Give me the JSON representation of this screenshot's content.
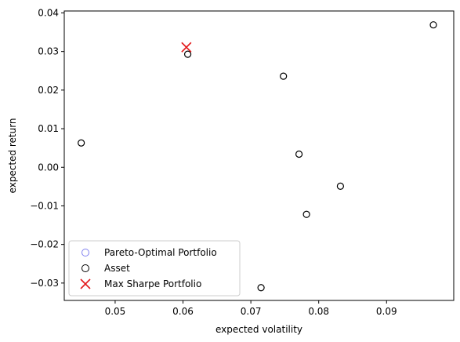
{
  "chart_data": {
    "type": "scatter",
    "xlabel": "expected volatility",
    "ylabel": "expected return",
    "xlim": [
      0.0425,
      0.0999
    ],
    "ylim": [
      -0.0345,
      0.0405
    ],
    "xticks": [
      {
        "value": 0.05,
        "label": "0.05"
      },
      {
        "value": 0.06,
        "label": "0.06"
      },
      {
        "value": 0.07,
        "label": "0.07"
      },
      {
        "value": 0.08,
        "label": "0.08"
      },
      {
        "value": 0.09,
        "label": "0.09"
      }
    ],
    "yticks": [
      {
        "value": 0.04,
        "label": "0.04"
      },
      {
        "value": 0.03,
        "label": "0.03"
      },
      {
        "value": 0.02,
        "label": "0.02"
      },
      {
        "value": 0.01,
        "label": "0.01"
      },
      {
        "value": 0.0,
        "label": "0.00"
      },
      {
        "value": -0.01,
        "label": "−0.01"
      },
      {
        "value": -0.02,
        "label": "−0.02"
      },
      {
        "value": -0.03,
        "label": "−0.03"
      }
    ],
    "series": [
      {
        "name": "Pareto-Optimal Portfolio",
        "marker": "circle-open",
        "color": "#8080f0",
        "points": []
      },
      {
        "name": "Asset",
        "marker": "circle-open",
        "color": "#000000",
        "points": [
          {
            "x": 0.0607,
            "y": 0.0293
          },
          {
            "x": 0.0969,
            "y": 0.0369
          },
          {
            "x": 0.0748,
            "y": 0.0236
          },
          {
            "x": 0.045,
            "y": 0.0063
          },
          {
            "x": 0.0771,
            "y": 0.0034
          },
          {
            "x": 0.0832,
            "y": -0.0049
          },
          {
            "x": 0.0782,
            "y": -0.0122
          },
          {
            "x": 0.0715,
            "y": -0.0312
          }
        ]
      },
      {
        "name": "Max Sharpe Portfolio",
        "marker": "x",
        "color": "#e31a1c",
        "points": [
          {
            "x": 0.0605,
            "y": 0.0311
          }
        ]
      }
    ],
    "legend": "lower-left",
    "grid": false
  }
}
